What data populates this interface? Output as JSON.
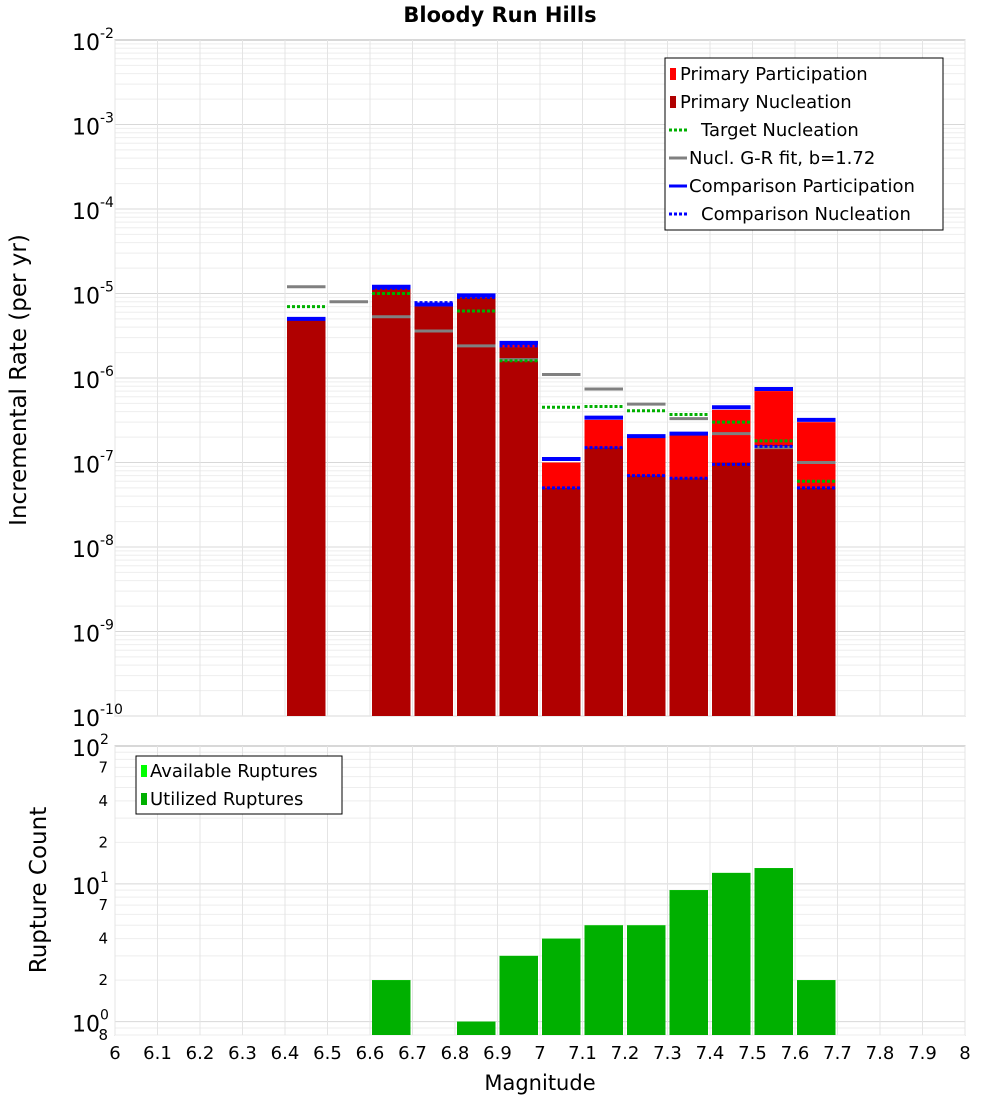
{
  "chart_data": [
    {
      "type": "bar",
      "title": "Bloody Run Hills",
      "ylabel": "Incremental Rate (per yr)",
      "yscale": "log",
      "ylim": [
        1e-10,
        0.01
      ],
      "xlim": [
        6.0,
        8.0
      ],
      "y_ticks": [
        {
          "base": "10",
          "exp": "-2"
        },
        {
          "base": "10",
          "exp": "-3"
        },
        {
          "base": "10",
          "exp": "-4"
        },
        {
          "base": "10",
          "exp": "-5"
        },
        {
          "base": "10",
          "exp": "-6"
        },
        {
          "base": "10",
          "exp": "-7"
        },
        {
          "base": "10",
          "exp": "-8"
        },
        {
          "base": "10",
          "exp": "-9"
        },
        {
          "base": "10",
          "exp": "-10"
        }
      ],
      "grid": true,
      "legend_position": "top-right",
      "x": [
        6.45,
        6.55,
        6.65,
        6.75,
        6.85,
        6.95,
        7.05,
        7.15,
        7.25,
        7.35,
        7.45,
        7.55,
        7.65
      ],
      "series": [
        {
          "name": "Primary Participation",
          "color": "#ff0000",
          "kind": "bar",
          "values": [
            4.8e-06,
            null,
            1.15e-05,
            7e-06,
            9e-06,
            2.5e-06,
            1e-07,
            3.2e-07,
            2e-07,
            2.1e-07,
            4.2e-07,
            7e-07,
            3e-07
          ]
        },
        {
          "name": "Primary Nucleation",
          "color": "#b00000",
          "kind": "bar",
          "values": [
            4.8e-06,
            null,
            1.15e-05,
            7e-06,
            9e-06,
            2.3e-06,
            5e-08,
            1.5e-07,
            7e-08,
            6.5e-08,
            1e-07,
            1.6e-07,
            5e-08
          ]
        },
        {
          "name": "Target Nucleation",
          "color": "#00b000",
          "kind": "dotted-step",
          "values": [
            7e-06,
            null,
            1e-05,
            7.5e-06,
            6.2e-06,
            1.6e-06,
            4.5e-07,
            4.6e-07,
            4.1e-07,
            3.7e-07,
            3e-07,
            1.8e-07,
            6e-08
          ]
        },
        {
          "name": "Nucl. G-R fit, b=1.72",
          "color": "#808080",
          "kind": "step",
          "values": [
            1.2e-05,
            8e-06,
            5.3e-06,
            3.6e-06,
            2.4e-06,
            1.65e-06,
            1.1e-06,
            7.4e-07,
            4.9e-07,
            3.3e-07,
            2.2e-07,
            1.5e-07,
            1e-07
          ]
        },
        {
          "name": "Comparison Participation",
          "color": "#0000ff",
          "kind": "step",
          "values": [
            5e-06,
            null,
            1.2e-05,
            7.4e-06,
            9.5e-06,
            2.6e-06,
            1.1e-07,
            3.4e-07,
            2.05e-07,
            2.2e-07,
            4.5e-07,
            7.4e-07,
            3.2e-07
          ]
        },
        {
          "name": "Comparison Nucleation",
          "color": "#0000ff",
          "kind": "dotted-step",
          "values": [
            null,
            null,
            1.15e-05,
            7.8e-06,
            9e-06,
            2.4e-06,
            5e-08,
            1.5e-07,
            7e-08,
            6.5e-08,
            9.5e-08,
            1.55e-07,
            5e-08
          ]
        }
      ]
    },
    {
      "type": "bar",
      "ylabel": "Rupture Count",
      "xlabel": "Magnitude",
      "yscale": "log",
      "ylim": [
        0.8,
        100
      ],
      "xlim": [
        6.0,
        8.0
      ],
      "x_ticks": [
        "6",
        "6.1",
        "6.2",
        "6.3",
        "6.4",
        "6.5",
        "6.6",
        "6.7",
        "6.8",
        "6.9",
        "7",
        "7.1",
        "7.2",
        "7.3",
        "7.4",
        "7.5",
        "7.6",
        "7.7",
        "7.8",
        "7.9",
        "8"
      ],
      "y_ticks": [
        {
          "base": "10",
          "exp": "2"
        },
        {
          "base": "10",
          "exp": "1"
        },
        {
          "base": "10",
          "exp": "0"
        }
      ],
      "y_minor_ticks": [
        "7",
        "4",
        "2",
        "7",
        "4",
        "2",
        "8"
      ],
      "grid": true,
      "legend_position": "top-left",
      "x": [
        6.65,
        6.85,
        6.95,
        7.05,
        7.15,
        7.25,
        7.35,
        7.45,
        7.55,
        7.65
      ],
      "series": [
        {
          "name": "Available Ruptures",
          "color": "#00ff00",
          "values": [
            2,
            1,
            3,
            4,
            5,
            5,
            9,
            12,
            13,
            2
          ]
        },
        {
          "name": "Utilized Ruptures",
          "color": "#00b000",
          "values": [
            2,
            1,
            3,
            4,
            5,
            5,
            9,
            12,
            13,
            2
          ]
        }
      ]
    }
  ]
}
